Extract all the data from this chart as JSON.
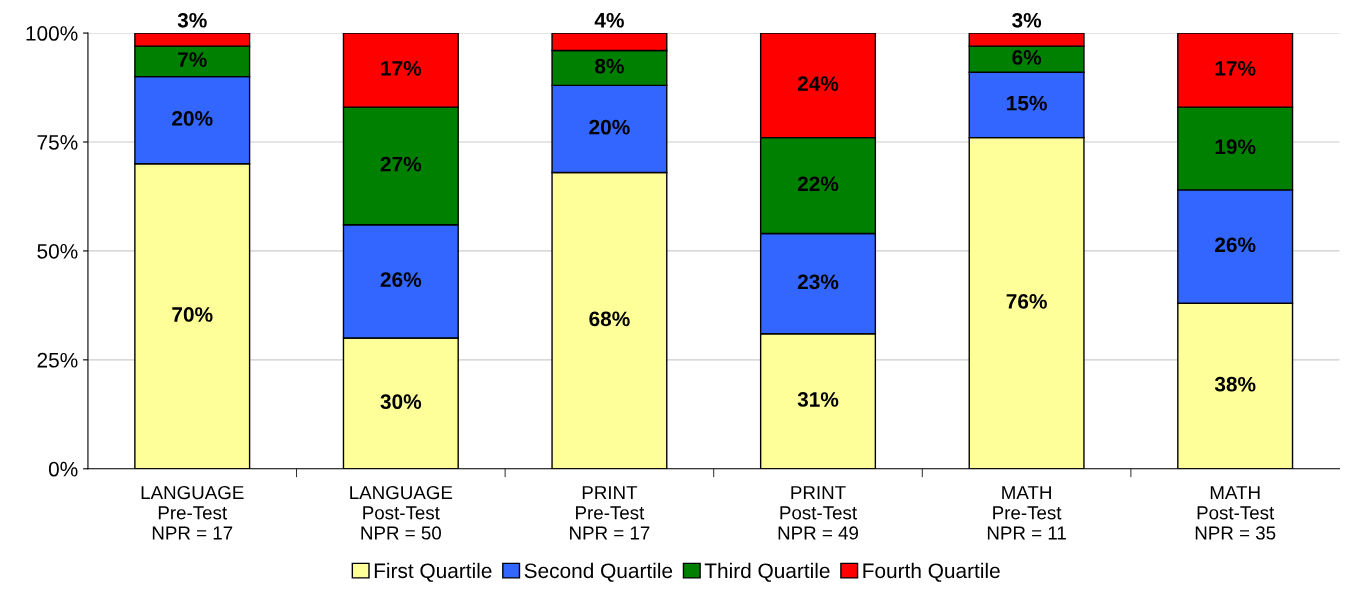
{
  "chart_data": {
    "type": "bar",
    "stacked": true,
    "categories": [
      "LANGUAGE\nPre-Test\nNPR = 17",
      "LANGUAGE\nPost-Test\nNPR = 50",
      "PRINT\nPre-Test\nNPR = 17",
      "PRINT\nPost-Test\nNPR = 49",
      "MATH\nPre-Test\nNPR = 11",
      "MATH\nPost-Test\nNPR = 35"
    ],
    "series": [
      {
        "name": "First Quartile",
        "color": "#ffff99",
        "values": [
          70,
          30,
          68,
          31,
          76,
          38
        ],
        "value_labels": [
          "70%",
          "30%",
          "68%",
          "31%",
          "76%",
          "38%"
        ]
      },
      {
        "name": "Second Quartile",
        "color": "#3366ff",
        "values": [
          20,
          26,
          20,
          23,
          15,
          26
        ],
        "value_labels": [
          "20%",
          "26%",
          "20%",
          "23%",
          "15%",
          "26%"
        ]
      },
      {
        "name": "Third Quartile",
        "color": "#008000",
        "values": [
          7,
          27,
          8,
          22,
          6,
          19
        ],
        "value_labels": [
          "7%",
          "27%",
          "8%",
          "22%",
          "6%",
          "19%"
        ]
      },
      {
        "name": "Fourth Quartile",
        "color": "#ff0000",
        "values": [
          3,
          17,
          4,
          24,
          3,
          17
        ],
        "value_labels": [
          "3%",
          "17%",
          "4%",
          "24%",
          "3%",
          "17%"
        ]
      }
    ],
    "ylim": [
      0,
      100
    ],
    "yticks": [
      {
        "value": 0,
        "label": "0%"
      },
      {
        "value": 25,
        "label": "25%"
      },
      {
        "value": 50,
        "label": "50%"
      },
      {
        "value": 75,
        "label": "75%"
      },
      {
        "value": 100,
        "label": "100%"
      }
    ],
    "grid": "y",
    "legend": "bottom"
  }
}
